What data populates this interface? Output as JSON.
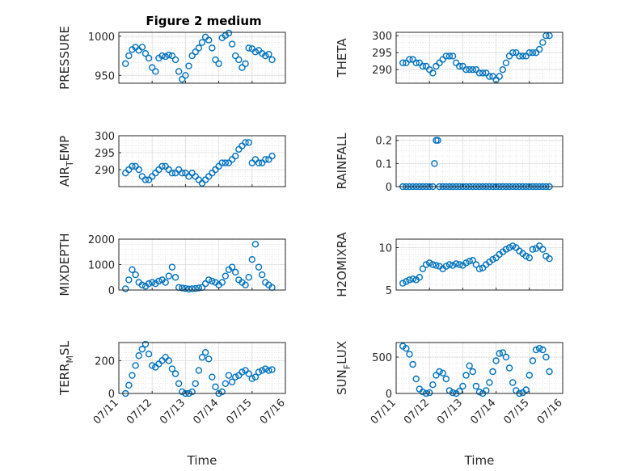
{
  "figure": {
    "title": "Figure 2 medium",
    "marker_color": "#0072BD",
    "grid": true,
    "minor_grid": true
  },
  "chart_data": [
    {
      "type": "scatter",
      "panel": "PRESSURE",
      "ylabel": "PRESSURE",
      "xlim": [
        0,
        5
      ],
      "ylim": [
        940,
        1005
      ],
      "yticks": [
        950,
        1000
      ],
      "ytick_labels": [
        "950",
        "1000"
      ],
      "x": [
        0.2,
        0.3,
        0.4,
        0.5,
        0.6,
        0.7,
        0.8,
        0.9,
        1.0,
        1.1,
        1.2,
        1.3,
        1.4,
        1.5,
        1.6,
        1.7,
        1.8,
        1.9,
        2.0,
        2.1,
        2.2,
        2.3,
        2.4,
        2.5,
        2.6,
        2.7,
        2.8,
        2.9,
        3.0,
        3.1,
        3.2,
        3.3,
        3.4,
        3.5,
        3.6,
        3.7,
        3.8,
        3.9,
        4.0,
        4.1,
        4.2,
        4.3,
        4.4,
        4.5,
        4.6
      ],
      "y": [
        965,
        975,
        983,
        986,
        982,
        986,
        978,
        972,
        960,
        955,
        972,
        975,
        974,
        976,
        975,
        970,
        955,
        945,
        950,
        962,
        975,
        980,
        985,
        992,
        999,
        995,
        985,
        970,
        965,
        998,
        1001,
        1004,
        990,
        975,
        970,
        960,
        965,
        985,
        984,
        980,
        982,
        978,
        975,
        977,
        970
      ]
    },
    {
      "type": "scatter",
      "panel": "THETA",
      "ylabel": "THETA",
      "xlim": [
        0,
        5
      ],
      "ylim": [
        286,
        301
      ],
      "yticks": [
        290,
        295,
        300
      ],
      "ytick_labels": [
        "290",
        "295",
        "300"
      ],
      "x": [
        0.2,
        0.3,
        0.4,
        0.5,
        0.6,
        0.7,
        0.8,
        0.9,
        1.0,
        1.1,
        1.2,
        1.3,
        1.4,
        1.5,
        1.6,
        1.7,
        1.8,
        1.9,
        2.0,
        2.1,
        2.2,
        2.3,
        2.4,
        2.5,
        2.6,
        2.7,
        2.8,
        2.9,
        3.0,
        3.1,
        3.2,
        3.3,
        3.4,
        3.5,
        3.6,
        3.7,
        3.8,
        3.9,
        4.0,
        4.1,
        4.2,
        4.3,
        4.4,
        4.5,
        4.6
      ],
      "y": [
        292,
        292,
        293,
        293,
        292,
        292,
        291,
        291,
        290,
        289,
        291,
        292,
        293,
        294,
        294,
        294,
        292,
        291,
        291,
        290,
        290,
        290,
        290,
        289,
        289,
        289,
        288,
        288,
        287,
        288,
        290,
        292,
        294,
        295,
        295,
        294,
        294,
        294,
        295,
        295,
        295,
        296,
        298,
        300,
        300
      ]
    },
    {
      "type": "scatter",
      "panel": "AIR_TEMP",
      "ylabel": "AIR_TEMP",
      "xlim": [
        0,
        5
      ],
      "ylim": [
        285,
        300
      ],
      "yticks": [
        290,
        295,
        300
      ],
      "ytick_labels": [
        "290",
        "295",
        "300"
      ],
      "x": [
        0.2,
        0.3,
        0.4,
        0.5,
        0.6,
        0.7,
        0.8,
        0.9,
        1.0,
        1.1,
        1.2,
        1.3,
        1.4,
        1.5,
        1.6,
        1.7,
        1.8,
        1.9,
        2.0,
        2.1,
        2.2,
        2.3,
        2.4,
        2.5,
        2.6,
        2.7,
        2.8,
        2.9,
        3.0,
        3.1,
        3.2,
        3.3,
        3.4,
        3.5,
        3.6,
        3.7,
        3.8,
        3.9,
        4.0,
        4.1,
        4.2,
        4.3,
        4.4,
        4.5,
        4.6
      ],
      "y": [
        289,
        290,
        291,
        291,
        290,
        288,
        287,
        287,
        288,
        289,
        290,
        291,
        291,
        290,
        289,
        289,
        290,
        289,
        289,
        288,
        289,
        288,
        287,
        286,
        287,
        288,
        289,
        290,
        291,
        292,
        292,
        292,
        293,
        294,
        296,
        297,
        298,
        298,
        292,
        293,
        292,
        292,
        293,
        293,
        294
      ]
    },
    {
      "type": "scatter",
      "panel": "RAINFALL",
      "ylabel": "RAINFALL",
      "xlim": [
        0,
        5
      ],
      "ylim": [
        0,
        0.22
      ],
      "yticks": [
        0,
        0.1,
        0.2
      ],
      "ytick_labels": [
        "0",
        "0.1",
        "0.2"
      ],
      "x": [
        0.2,
        0.3,
        0.4,
        0.5,
        0.6,
        0.7,
        0.8,
        0.9,
        1.0,
        1.1,
        1.15,
        1.2,
        1.25,
        1.3,
        1.4,
        1.5,
        1.6,
        1.7,
        1.8,
        1.9,
        2.0,
        2.1,
        2.2,
        2.3,
        2.4,
        2.5,
        2.6,
        2.7,
        2.8,
        2.9,
        3.0,
        3.1,
        3.2,
        3.3,
        3.4,
        3.5,
        3.6,
        3.7,
        3.8,
        3.9,
        4.0,
        4.1,
        4.2,
        4.3,
        4.4,
        4.5,
        4.6
      ],
      "y": [
        0,
        0,
        0,
        0,
        0,
        0,
        0,
        0,
        0,
        0,
        0.1,
        0.2,
        0.2,
        0,
        0,
        0,
        0,
        0,
        0,
        0,
        0,
        0,
        0,
        0,
        0,
        0,
        0,
        0,
        0,
        0,
        0,
        0,
        0,
        0,
        0,
        0,
        0,
        0,
        0,
        0,
        0,
        0,
        0,
        0,
        0,
        0,
        0
      ]
    },
    {
      "type": "scatter",
      "panel": "MIXDEPTH",
      "ylabel": "MIXDEPTH",
      "xlim": [
        0,
        5
      ],
      "ylim": [
        0,
        2000
      ],
      "yticks": [
        0,
        1000,
        2000
      ],
      "ytick_labels": [
        "0",
        "1000",
        "2000"
      ],
      "x": [
        0.2,
        0.3,
        0.4,
        0.5,
        0.6,
        0.7,
        0.8,
        0.9,
        1.0,
        1.1,
        1.2,
        1.3,
        1.4,
        1.5,
        1.6,
        1.7,
        1.8,
        1.9,
        2.0,
        2.1,
        2.2,
        2.3,
        2.4,
        2.5,
        2.6,
        2.7,
        2.8,
        2.9,
        3.0,
        3.1,
        3.2,
        3.3,
        3.4,
        3.5,
        3.6,
        3.7,
        3.8,
        3.9,
        4.0,
        4.1,
        4.2,
        4.3,
        4.4,
        4.5,
        4.6
      ],
      "y": [
        50,
        400,
        800,
        600,
        300,
        200,
        150,
        250,
        300,
        250,
        350,
        400,
        300,
        550,
        900,
        500,
        100,
        80,
        60,
        40,
        50,
        60,
        80,
        100,
        250,
        400,
        350,
        300,
        200,
        300,
        550,
        800,
        900,
        700,
        400,
        300,
        200,
        500,
        1200,
        1800,
        900,
        600,
        300,
        200,
        100
      ]
    },
    {
      "type": "scatter",
      "panel": "H2OMIXRA",
      "ylabel": "H2OMIXRA",
      "xlim": [
        0,
        5
      ],
      "ylim": [
        5,
        11
      ],
      "yticks": [
        5,
        10
      ],
      "ytick_labels": [
        "5",
        "10"
      ],
      "x": [
        0.2,
        0.3,
        0.4,
        0.5,
        0.6,
        0.7,
        0.8,
        0.9,
        1.0,
        1.1,
        1.2,
        1.3,
        1.4,
        1.5,
        1.6,
        1.7,
        1.8,
        1.9,
        2.0,
        2.1,
        2.2,
        2.3,
        2.4,
        2.5,
        2.6,
        2.7,
        2.8,
        2.9,
        3.0,
        3.1,
        3.2,
        3.3,
        3.4,
        3.5,
        3.6,
        3.7,
        3.8,
        3.9,
        4.0,
        4.1,
        4.2,
        4.3,
        4.4,
        4.5,
        4.6
      ],
      "y": [
        5.8,
        6.0,
        6.2,
        6.3,
        6.2,
        6.5,
        7.5,
        8.0,
        8.2,
        8.0,
        7.9,
        7.8,
        7.5,
        7.8,
        8.0,
        7.9,
        8.1,
        8.0,
        7.9,
        8.2,
        8.4,
        8.5,
        8.0,
        7.5,
        7.6,
        8.0,
        8.3,
        8.6,
        8.8,
        9.2,
        9.5,
        9.8,
        10.0,
        10.2,
        10.0,
        9.6,
        9.3,
        9.0,
        8.8,
        9.8,
        9.9,
        10.2,
        9.8,
        9.0,
        8.7
      ]
    },
    {
      "type": "scatter",
      "panel": "TERR_MSL",
      "ylabel": "TERR_MSL",
      "xlim": [
        0,
        5
      ],
      "ylim": [
        0,
        310
      ],
      "yticks": [
        0,
        200
      ],
      "ytick_labels": [
        "0",
        "200"
      ],
      "x": [
        0.2,
        0.3,
        0.4,
        0.5,
        0.6,
        0.7,
        0.8,
        0.9,
        1.0,
        1.1,
        1.2,
        1.3,
        1.4,
        1.5,
        1.6,
        1.7,
        1.8,
        1.9,
        2.0,
        2.1,
        2.2,
        2.3,
        2.4,
        2.5,
        2.6,
        2.7,
        2.8,
        2.9,
        3.0,
        3.1,
        3.2,
        3.3,
        3.4,
        3.5,
        3.6,
        3.7,
        3.8,
        3.9,
        4.0,
        4.1,
        4.2,
        4.3,
        4.4,
        4.5,
        4.6
      ],
      "y": [
        0,
        50,
        110,
        170,
        230,
        270,
        300,
        240,
        170,
        160,
        180,
        200,
        220,
        200,
        150,
        120,
        60,
        10,
        0,
        0,
        10,
        60,
        140,
        220,
        250,
        210,
        100,
        40,
        0,
        10,
        60,
        110,
        70,
        100,
        110,
        130,
        140,
        120,
        90,
        100,
        130,
        140,
        150,
        140,
        145
      ]
    },
    {
      "type": "scatter",
      "panel": "SUN_FLUX",
      "ylabel": "SUN_FLUX",
      "xlim": [
        0,
        5
      ],
      "ylim": [
        0,
        700
      ],
      "yticks": [
        0,
        500
      ],
      "ytick_labels": [
        "0",
        "500"
      ],
      "x": [
        0.2,
        0.3,
        0.4,
        0.5,
        0.6,
        0.7,
        0.8,
        0.9,
        1.0,
        1.1,
        1.2,
        1.3,
        1.4,
        1.5,
        1.6,
        1.7,
        1.8,
        1.9,
        2.0,
        2.1,
        2.2,
        2.3,
        2.4,
        2.5,
        2.6,
        2.7,
        2.8,
        2.9,
        3.0,
        3.1,
        3.2,
        3.3,
        3.4,
        3.5,
        3.6,
        3.7,
        3.8,
        3.9,
        4.0,
        4.1,
        4.2,
        4.3,
        4.4,
        4.5,
        4.6
      ],
      "y": [
        650,
        620,
        540,
        400,
        200,
        60,
        20,
        0,
        10,
        120,
        250,
        300,
        280,
        200,
        40,
        10,
        0,
        30,
        100,
        250,
        380,
        300,
        100,
        20,
        0,
        40,
        150,
        300,
        450,
        550,
        560,
        500,
        350,
        150,
        40,
        0,
        10,
        50,
        250,
        450,
        600,
        620,
        600,
        500,
        300
      ]
    }
  ],
  "axes": {
    "x_ticks": [
      {
        "label": "07/11",
        "value": 0
      },
      {
        "label": "07/12",
        "value": 1
      },
      {
        "label": "07/13",
        "value": 2
      },
      {
        "label": "07/14",
        "value": 3
      },
      {
        "label": "07/15",
        "value": 4
      },
      {
        "label": "07/16",
        "value": 5
      }
    ],
    "xlabel": "Time"
  }
}
